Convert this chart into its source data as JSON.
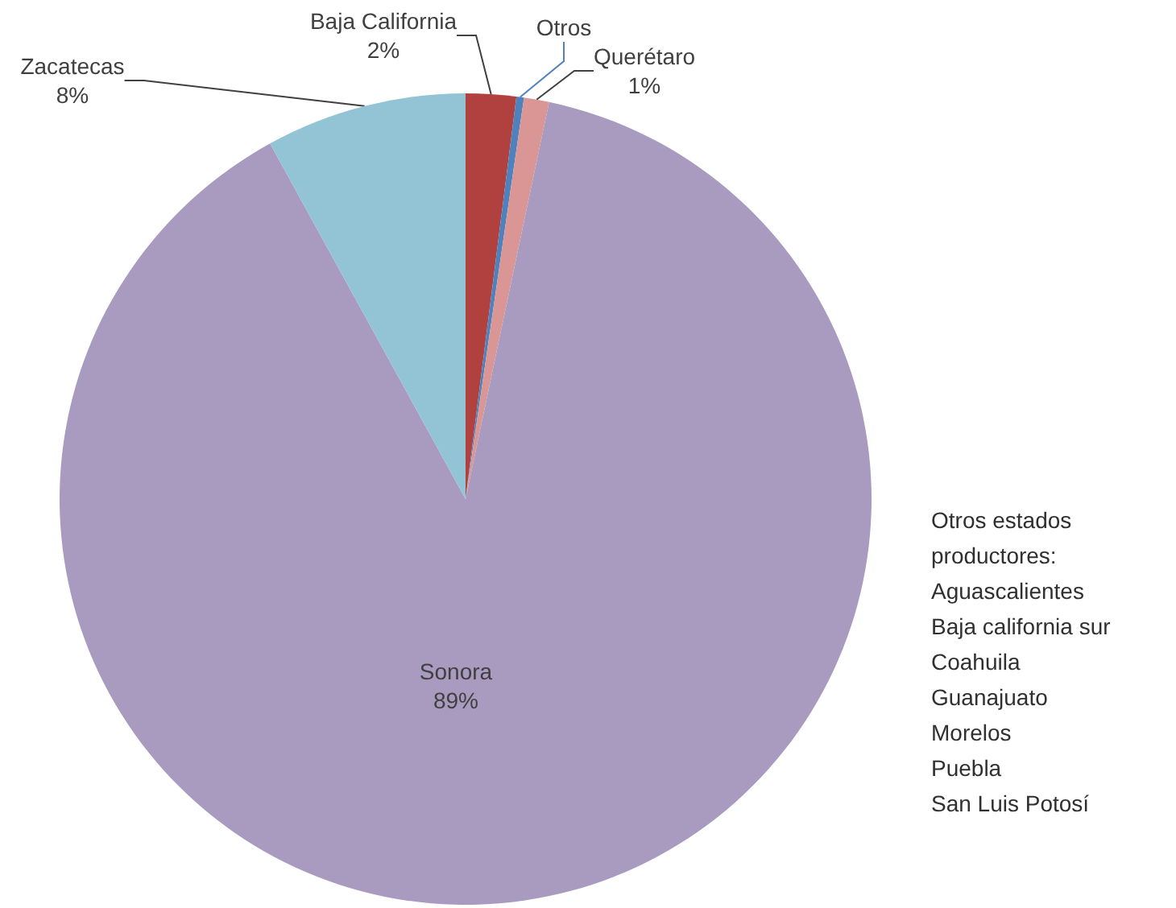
{
  "chart_data": {
    "type": "pie",
    "categories": [
      "Baja California",
      "Otros",
      "Querétaro",
      "Sonora",
      "Zacatecas"
    ],
    "values": [
      2,
      0.3,
      1,
      88.7,
      8
    ],
    "value_labels": [
      "2%",
      null,
      "1%",
      "89%",
      "8%"
    ],
    "colors": [
      "#b0413e",
      "#4f81bd",
      "#d99694",
      "#a99bc0",
      "#92c4d5"
    ],
    "annotations": [
      "Otros estados productores:\nAguascalientes\nBaja california sur\nCoahuila\nGuanajuato\nMorelos\nPuebla\nSan Luis Potosí"
    ]
  }
}
